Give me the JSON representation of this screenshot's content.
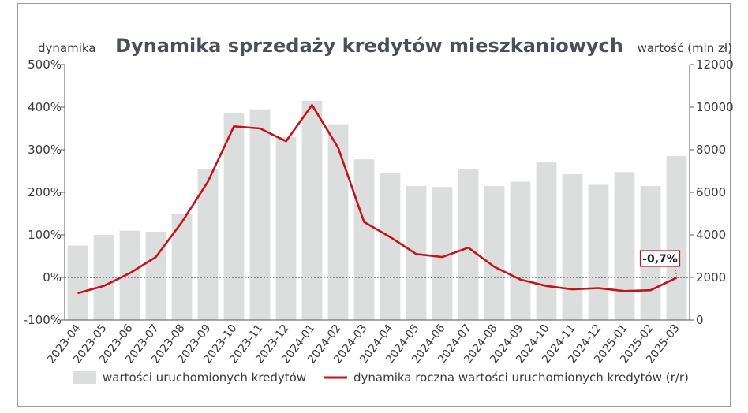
{
  "chart_data": {
    "type": "bar",
    "title": "Dynamika sprzedaży kredytów mieszkaniowych",
    "ylabel_left": "dynamika",
    "ylabel_right": "wartość (mln zł)",
    "categories": [
      "2023-04",
      "2023-05",
      "2023-06",
      "2023-07",
      "2023-08",
      "2023-09",
      "2023-10",
      "2023-11",
      "2023-12",
      "2024-01",
      "2024-02",
      "2024-03",
      "2024-04",
      "2024-05",
      "2024-06",
      "2024-07",
      "2024-08",
      "2024-09",
      "2024-10",
      "2024-11",
      "2024-12",
      "2025-01",
      "2025-02",
      "2025-03"
    ],
    "left_axis": {
      "ylim": [
        -100,
        500
      ],
      "ticks": [
        -100,
        0,
        100,
        200,
        300,
        400,
        500
      ],
      "tick_labels": [
        "-100%",
        "0%",
        "100%",
        "200%",
        "300%",
        "400%",
        "500%"
      ]
    },
    "right_axis": {
      "ylim": [
        0,
        12000
      ],
      "ticks": [
        0,
        2000,
        4000,
        6000,
        8000,
        10000,
        12000
      ],
      "tick_labels": [
        "0",
        "2000",
        "4000",
        "6000",
        "8000",
        "10000",
        "12000"
      ]
    },
    "series": [
      {
        "name": "wartości uruchomionych kredytów",
        "type": "bar",
        "axis": "right",
        "color": "#dcdddd",
        "values": [
          3500,
          4000,
          4200,
          4150,
          5000,
          7100,
          9700,
          9900,
          8600,
          10300,
          9200,
          7550,
          6900,
          6300,
          6250,
          7100,
          6300,
          6500,
          7400,
          6850,
          6350,
          6950,
          6300,
          7700
        ]
      },
      {
        "name": "dynamika roczna wartości uruchomionych kredytów (r/r)",
        "type": "line",
        "axis": "left",
        "color": "#c0161b",
        "values": [
          -37,
          -20,
          10,
          48,
          130,
          225,
          355,
          350,
          320,
          405,
          305,
          130,
          95,
          55,
          48,
          70,
          25,
          -5,
          -20,
          -28,
          -25,
          -32,
          -30,
          -0.7
        ]
      }
    ],
    "annotation": {
      "label": "-0,7%",
      "category": "2025-03"
    },
    "zero_line": "dotted",
    "legend_position": "bottom"
  }
}
